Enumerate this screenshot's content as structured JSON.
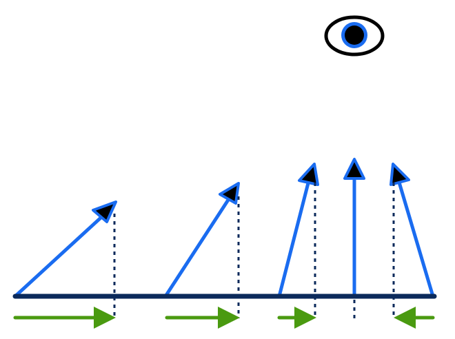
{
  "colors": {
    "background": "#ffffff",
    "baseline": "#0b2a5b",
    "vector": "#1a6cf0",
    "arrowhead_fill": "#000000",
    "projection_line": "#0b2a5b",
    "projection_arrow": "#4a9a10",
    "eye_outline": "#000000",
    "eye_iris": "#1a6cf0",
    "eye_pupil": "#000000"
  },
  "icons": {
    "viewer": "eye-icon"
  },
  "vectors": [
    {
      "id": "vector-1",
      "projection_direction": "right"
    },
    {
      "id": "vector-2",
      "projection_direction": "right"
    },
    {
      "id": "vector-3",
      "projection_direction": "right"
    },
    {
      "id": "vector-4",
      "projection_direction": "none"
    },
    {
      "id": "vector-5",
      "projection_direction": "left"
    }
  ]
}
